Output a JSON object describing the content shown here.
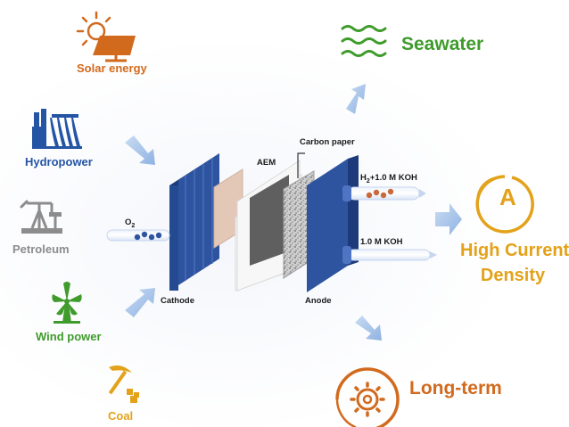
{
  "sources": {
    "solar": {
      "label": "Solar energy",
      "color": "#d26a1e",
      "icon": "solar-panel-icon"
    },
    "hydro": {
      "label": "Hydropower",
      "color": "#2454a4",
      "icon": "hydro-dam-icon"
    },
    "petroleum": {
      "label": "Petroleum",
      "color": "#8c8c8c",
      "icon": "oil-pump-icon"
    },
    "wind": {
      "label": "Wind power",
      "color": "#3f9b2b",
      "icon": "wind-turbine-icon"
    },
    "coal": {
      "label": "Coal",
      "color": "#e3a21a",
      "icon": "pickaxe-coal-icon"
    }
  },
  "electrolyzer": {
    "cathode": "Cathode",
    "anode": "Anode",
    "aem": "AEM",
    "carbon_paper": "Carbon paper",
    "o2": {
      "main": "O",
      "sub": "2"
    },
    "h2_koh": {
      "pre": "H",
      "sub": "2",
      "post": "+1.0 M KOH"
    },
    "koh": "1.0 M KOH"
  },
  "outcomes": {
    "seawater": {
      "label": "Seawater",
      "color": "#3f9b2b",
      "icon": "water-waves-icon"
    },
    "high_current": {
      "line1": "High Current",
      "line2": "Density",
      "color": "#e3a21a",
      "icon_letter": "A",
      "icon": "ampere-icon"
    },
    "long_term": {
      "label": "Long-term",
      "color": "#d26a1e",
      "icon": "cycle-gear-icon"
    }
  },
  "colors": {
    "arrow": "#a8c4ea",
    "plate": "#2e54a0",
    "plate_dark": "#1d3a7a"
  }
}
